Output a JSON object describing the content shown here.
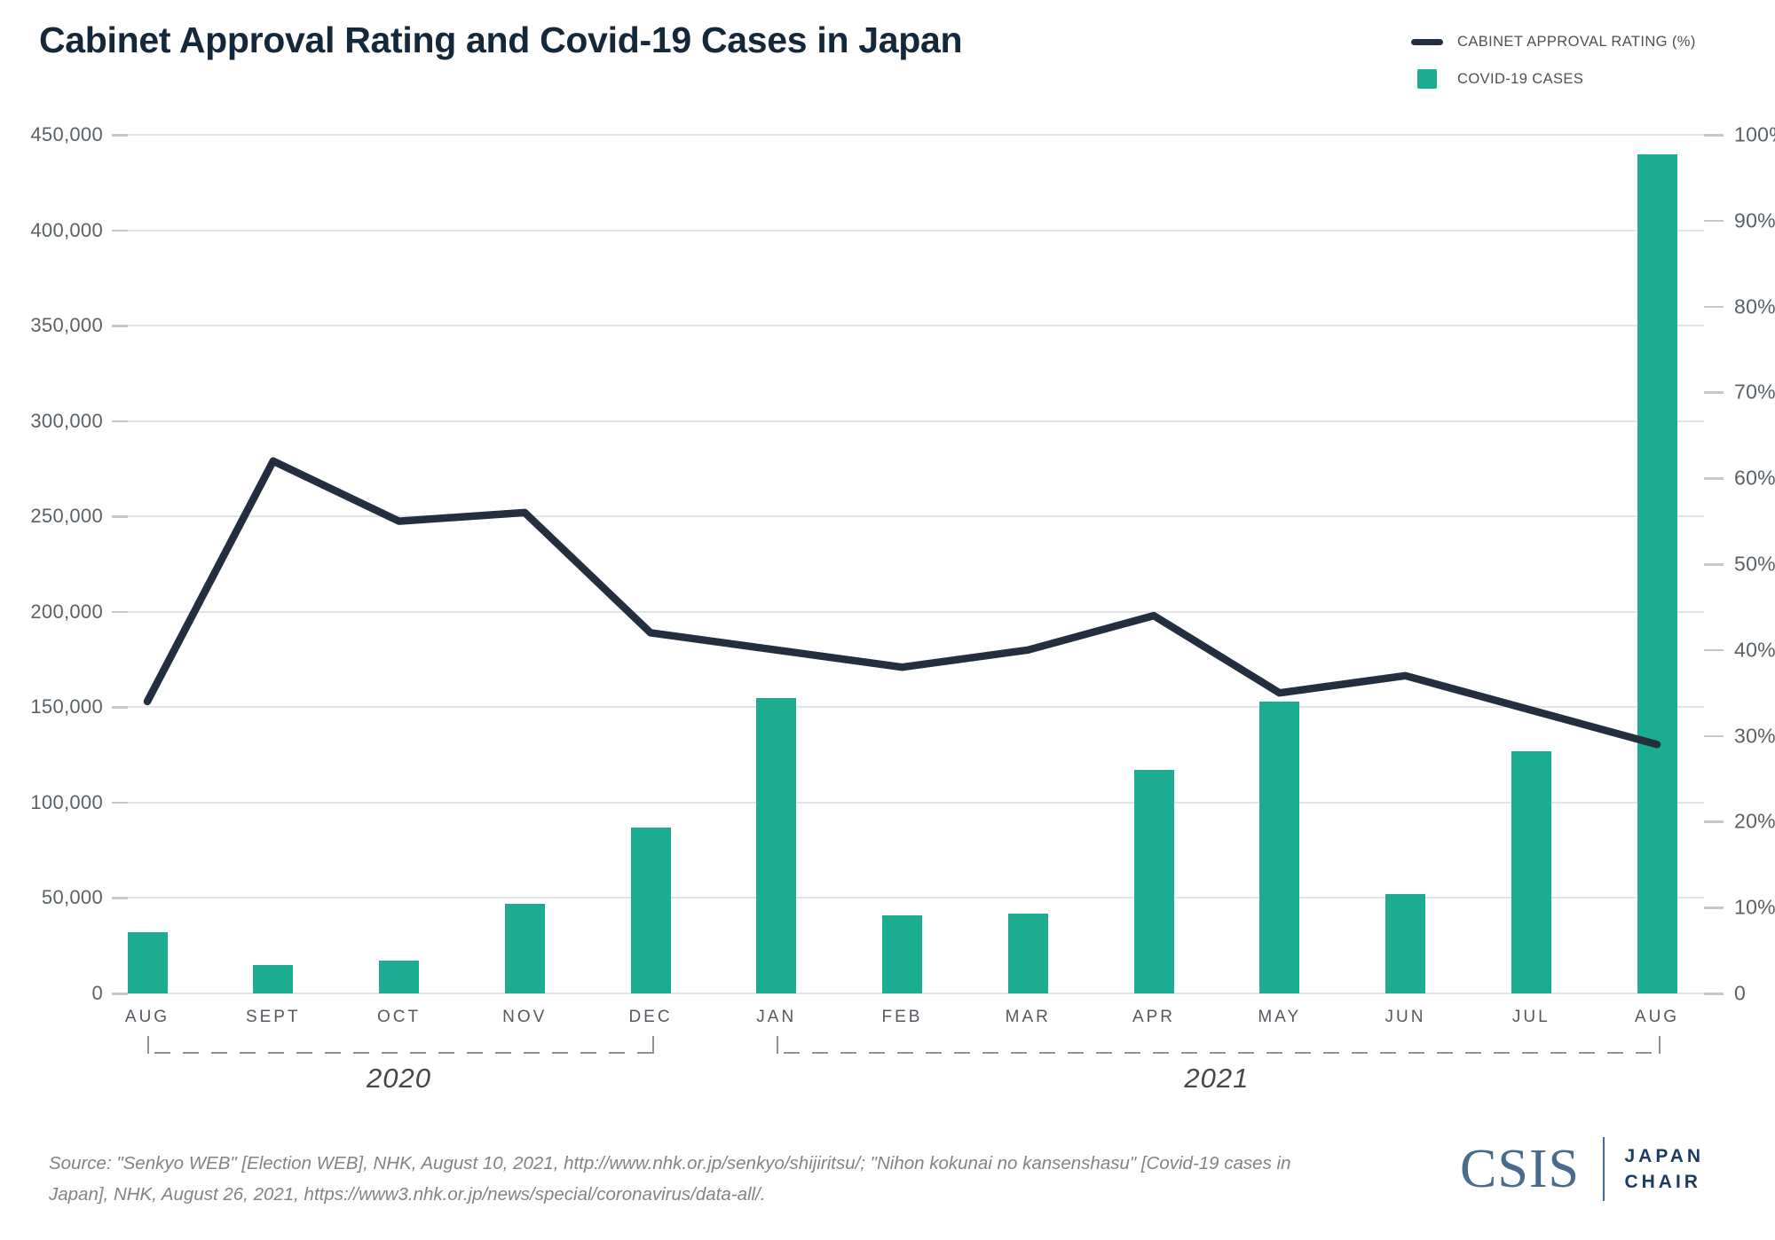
{
  "title": "Cabinet Approval Rating and Covid-19 Cases in Japan",
  "legend": {
    "position": "top-right",
    "items": [
      {
        "label": "CABINET APPROVAL RATING (%)",
        "swatch": "line",
        "color": "#232e3e"
      },
      {
        "label": "COVID-19 CASES",
        "swatch": "square",
        "color": "#1bac92"
      }
    ]
  },
  "chart_data": {
    "type": "combo",
    "categories": [
      "AUG",
      "SEPT",
      "OCT",
      "NOV",
      "DEC",
      "JAN",
      "FEB",
      "MAR",
      "APR",
      "MAY",
      "JUN",
      "JUL",
      "AUG"
    ],
    "year_groups": [
      {
        "label": "2020",
        "start_index": 0,
        "end_index": 4
      },
      {
        "label": "2021",
        "start_index": 5,
        "end_index": 12
      }
    ],
    "series": [
      {
        "name": "CABINET APPROVAL RATING (%)",
        "type": "line",
        "axis": "right",
        "unit": "%",
        "color": "#232e3e",
        "values": [
          34,
          62,
          55,
          56,
          42,
          40,
          38,
          40,
          44,
          35,
          37,
          33,
          29
        ]
      },
      {
        "name": "COVID-19 CASES",
        "type": "bar",
        "axis": "left",
        "color": "#1bac92",
        "values": [
          32000,
          15000,
          17000,
          47000,
          87000,
          155000,
          41000,
          42000,
          117000,
          153000,
          52000,
          127000,
          440000
        ]
      }
    ],
    "left_axis": {
      "min": 0,
      "max": 450000,
      "step": 50000,
      "tick_labels": [
        "450,000",
        "400,000",
        "350,000",
        "300,000",
        "250,000",
        "200,000",
        "150,000",
        "100,000",
        "50,000",
        "0"
      ]
    },
    "right_axis": {
      "min": 0,
      "max": 100,
      "step": 10,
      "tick_labels": [
        "100%",
        "90%",
        "80%",
        "70%",
        "60%",
        "50%",
        "40%",
        "30%",
        "20%",
        "10%",
        "0"
      ]
    },
    "grid": "horizontal gridlines at left-axis 50,000 intervals",
    "legend_position": "top-right"
  },
  "source": {
    "line1": "Source: \"Senkyo WEB\" [Election WEB], NHK, August 10, 2021, http://www.nhk.or.jp/senkyo/shijiritsu/; \"Nihon kokunai no kansenshasu\" [Covid-19 cases in",
    "line2": "Japan], NHK, August 26, 2021, https://www3.nhk.or.jp/news/special/coronavirus/data-all/."
  },
  "logo": {
    "org": "CSIS",
    "unit_line1": "JAPAN",
    "unit_line2": "CHAIR"
  }
}
